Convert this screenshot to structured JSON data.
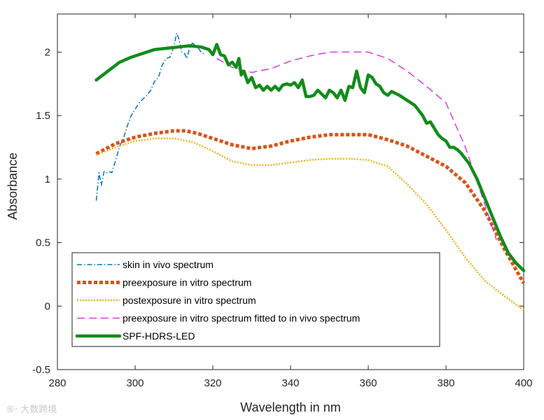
{
  "chart_data": {
    "type": "line",
    "title": "",
    "xlabel": "Wavelength in nm",
    "ylabel": "Absorbance",
    "xlim": [
      280,
      400
    ],
    "ylim": [
      -0.5,
      2.3
    ],
    "xticks": [
      280,
      300,
      320,
      340,
      360,
      380,
      400
    ],
    "yticks": [
      -0.5,
      0,
      0.5,
      1,
      1.5,
      2
    ],
    "ytick_labels": [
      "-0.5",
      "0",
      "0.5",
      "1",
      "1.5",
      "2"
    ],
    "legend_position": "lower-left",
    "series": [
      {
        "name": "skin in vivo spectrum",
        "color": "#0072BD",
        "style": "dash-dot",
        "x": [
          290,
          290.7,
          291.3,
          292,
          292.7,
          293.3,
          294,
          294.7,
          295.3,
          296,
          297,
          298,
          299,
          300,
          301,
          302,
          303,
          304,
          305,
          306,
          307,
          308,
          309,
          310,
          310.7,
          311.3,
          312,
          312.7,
          313.3,
          314,
          314.7,
          315.3,
          316,
          317,
          318
        ],
        "y": [
          0.83,
          1.05,
          0.95,
          1.06,
          1.05,
          1.06,
          1.05,
          1.12,
          1.18,
          1.26,
          1.32,
          1.42,
          1.5,
          1.55,
          1.6,
          1.63,
          1.66,
          1.7,
          1.77,
          1.8,
          1.9,
          1.95,
          1.96,
          2.05,
          2.15,
          2.1,
          2.0,
          1.99,
          1.95,
          2.03,
          2.07,
          2.06,
          2.04,
          2.0,
          1.98
        ]
      },
      {
        "name": "preexposure in vitro spectrum",
        "color": "#D95319",
        "style": "dotted-thick",
        "x": [
          290,
          295,
          300,
          305,
          310,
          313,
          316,
          320,
          325,
          330,
          335,
          340,
          345,
          350,
          355,
          360,
          365,
          370,
          375,
          380,
          385,
          390,
          395,
          400
        ],
        "y": [
          1.2,
          1.28,
          1.33,
          1.36,
          1.38,
          1.38,
          1.36,
          1.32,
          1.27,
          1.24,
          1.26,
          1.3,
          1.33,
          1.35,
          1.35,
          1.35,
          1.31,
          1.26,
          1.18,
          1.1,
          0.97,
          0.75,
          0.45,
          0.18
        ]
      },
      {
        "name": "postexposure in vitro spectrum",
        "color": "#EDB120",
        "style": "dotted",
        "x": [
          290,
          295,
          300,
          305,
          310,
          315,
          320,
          325,
          330,
          335,
          340,
          345,
          350,
          355,
          360,
          365,
          370,
          375,
          380,
          385,
          390,
          395,
          400
        ],
        "y": [
          1.19,
          1.25,
          1.3,
          1.32,
          1.32,
          1.29,
          1.22,
          1.14,
          1.11,
          1.11,
          1.13,
          1.15,
          1.16,
          1.16,
          1.15,
          1.1,
          0.96,
          0.8,
          0.6,
          0.38,
          0.2,
          0.08,
          -0.03
        ]
      },
      {
        "name": "preexposure in vitro spectrum fitted to in vivo spectrum",
        "color": "#D622D6",
        "style": "dashed",
        "x": [
          321,
          325,
          330,
          335,
          340,
          345,
          350,
          355,
          360,
          365,
          370,
          375,
          380,
          385,
          390,
          393
        ],
        "y": [
          1.95,
          1.88,
          1.84,
          1.87,
          1.93,
          1.97,
          2.0,
          2.0,
          2.0,
          1.95,
          1.85,
          1.73,
          1.6,
          1.25,
          0.8,
          0.52
        ]
      },
      {
        "name": "SPF-HDRS-LED",
        "color": "#118C1A",
        "style": "solid-thick",
        "x": [
          290,
          293,
          296,
          299,
          302,
          305,
          308,
          311,
          314,
          317,
          319,
          320,
          321,
          322,
          323,
          324,
          325,
          326,
          326.7,
          327.3,
          328,
          329,
          330,
          331,
          332,
          333,
          334,
          335,
          336,
          337,
          338,
          339,
          340,
          341,
          342,
          343,
          344,
          345,
          346,
          347,
          348,
          349,
          350,
          351,
          352,
          353,
          354,
          355,
          356,
          357,
          358,
          359,
          360,
          361,
          362,
          363,
          364,
          365,
          366,
          368,
          370,
          372,
          374,
          375,
          376,
          378,
          379,
          380,
          381,
          382,
          383,
          384,
          386,
          388,
          390,
          392,
          394,
          396,
          398,
          400
        ],
        "y": [
          1.78,
          1.85,
          1.92,
          1.96,
          1.99,
          2.02,
          2.03,
          2.04,
          2.05,
          2.04,
          2.02,
          1.98,
          2.06,
          1.98,
          1.97,
          1.9,
          1.92,
          1.88,
          1.95,
          1.82,
          1.85,
          1.76,
          1.8,
          1.72,
          1.74,
          1.7,
          1.73,
          1.7,
          1.73,
          1.7,
          1.74,
          1.75,
          1.74,
          1.76,
          1.72,
          1.78,
          1.65,
          1.65,
          1.66,
          1.7,
          1.67,
          1.64,
          1.7,
          1.68,
          1.64,
          1.7,
          1.62,
          1.73,
          1.72,
          1.85,
          1.72,
          1.68,
          1.82,
          1.8,
          1.75,
          1.73,
          1.68,
          1.66,
          1.69,
          1.66,
          1.62,
          1.58,
          1.5,
          1.44,
          1.45,
          1.35,
          1.32,
          1.3,
          1.25,
          1.25,
          1.23,
          1.2,
          1.12,
          1.0,
          0.85,
          0.7,
          0.55,
          0.42,
          0.34,
          0.28
        ]
      }
    ]
  },
  "watermark": "®· 大数跨境"
}
